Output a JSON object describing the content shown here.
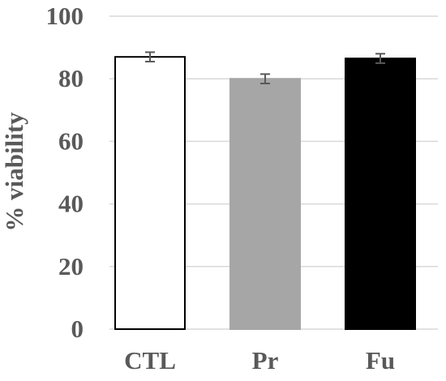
{
  "chart_data": {
    "type": "bar",
    "title": "",
    "xlabel": "",
    "ylabel": "% viability",
    "ylim": [
      0,
      100
    ],
    "yticks": [
      0,
      20,
      40,
      60,
      80,
      100
    ],
    "grid": true,
    "categories": [
      "CTL",
      "Pr",
      "Fu"
    ],
    "values": [
      87,
      80,
      86.5
    ],
    "errors": [
      1.5,
      1.5,
      1.5
    ],
    "bar_fills": [
      "#ffffff",
      "#a6a6a6",
      "#000000"
    ],
    "bar_strokes": [
      "#000000",
      "#a6a6a6",
      "#000000"
    ],
    "gridline_color": "#d9d9d9",
    "error_bar_color": "#595959",
    "text_color": "#595959"
  }
}
